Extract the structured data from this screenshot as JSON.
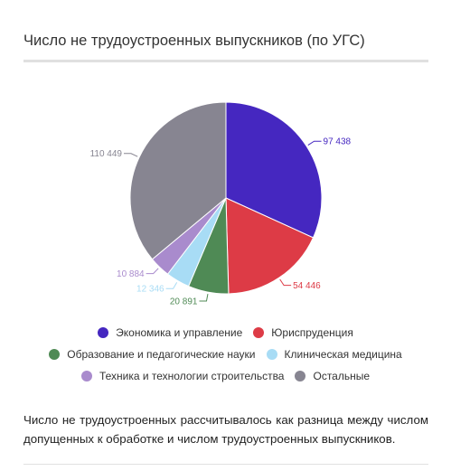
{
  "title": "Число не трудоустроенных выпускников (по УГС)",
  "note": "Число не трудоустроенных рассчитывалось как разница между числом допущенных к обработке и числом трудоустроенных выпускников.",
  "chart_data": {
    "type": "pie",
    "title": "Число не трудоустроенных выпускников (по УГС)",
    "series": [
      {
        "name": "Экономика и управление",
        "value": 97438,
        "label": "97 438",
        "color": "#4527c0"
      },
      {
        "name": "Юриспруденция",
        "value": 54446,
        "label": "54 446",
        "color": "#dd3b46"
      },
      {
        "name": "Образование и педагогические науки",
        "value": 20891,
        "label": "20 891",
        "color": "#4f8a55"
      },
      {
        "name": "Клиническая медицина",
        "value": 12346,
        "label": "12 346",
        "color": "#a8dcf5"
      },
      {
        "name": "Техника и технологии строительства",
        "value": 10884,
        "label": "10 884",
        "color": "#a98bcd"
      },
      {
        "name": "Остальные",
        "value": 110449,
        "label": "110 449",
        "color": "#878591"
      }
    ],
    "legend_position": "bottom"
  }
}
